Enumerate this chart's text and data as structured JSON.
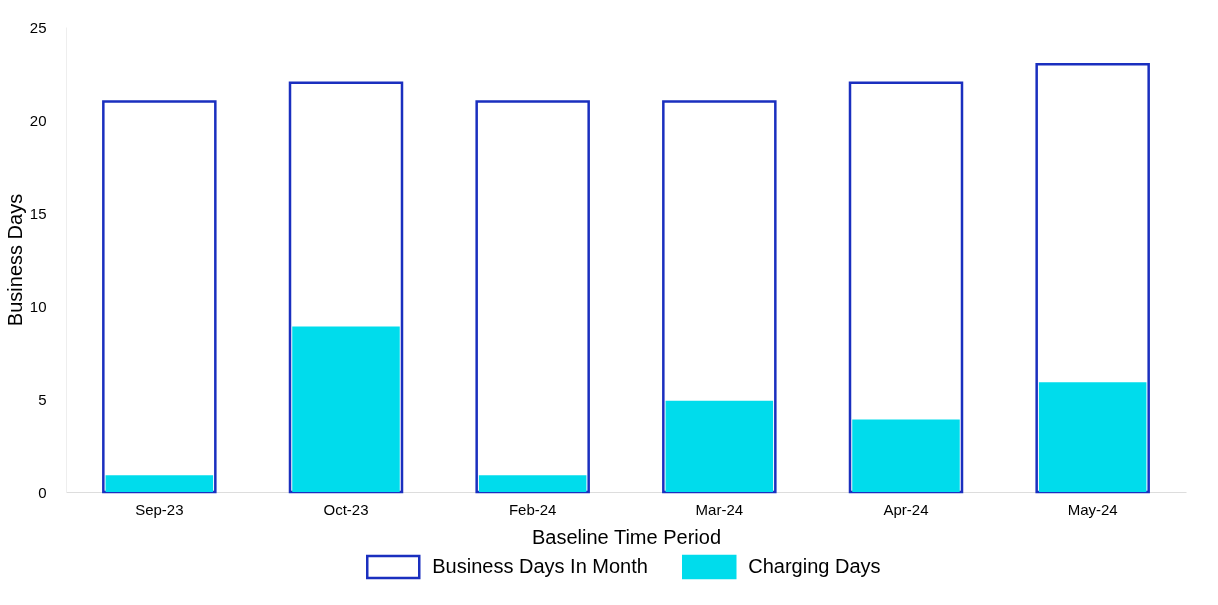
{
  "chart_data": {
    "type": "bar",
    "xlabel": "Baseline Time Period",
    "ylabel": "Business Days",
    "categories": [
      "Sep-23",
      "Oct-23",
      "Feb-24",
      "Mar-24",
      "Apr-24",
      "May-24"
    ],
    "series": [
      {
        "name": "Business Days In Month",
        "color": "#1a2fbf",
        "values": [
          21,
          22,
          21,
          21,
          22,
          23
        ]
      },
      {
        "name": "Charging Days",
        "color": "#00dcec",
        "values": [
          0.9,
          8.9,
          0.9,
          4.9,
          3.9,
          5.9
        ]
      }
    ],
    "ylim": [
      0,
      25
    ],
    "yticks": [
      0,
      5,
      10,
      15,
      20,
      25
    ],
    "grid": false,
    "legend": "bottom"
  }
}
